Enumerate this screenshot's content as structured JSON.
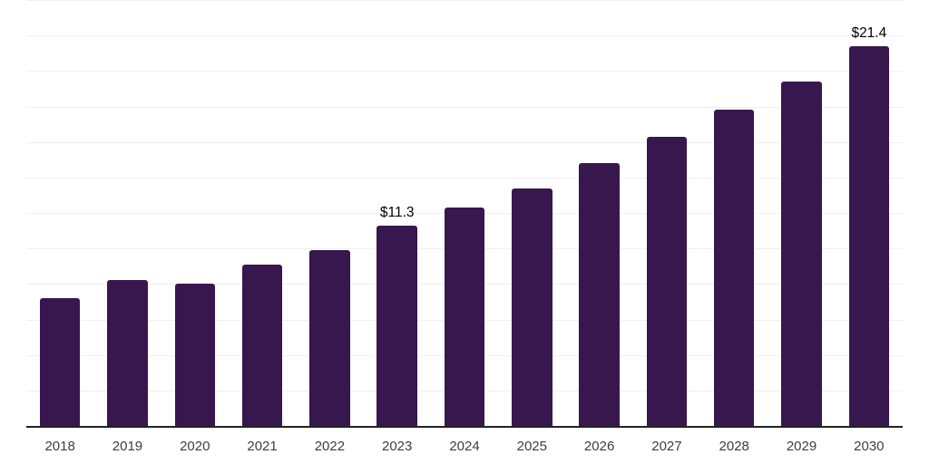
{
  "chart_data": {
    "type": "bar",
    "categories": [
      "2018",
      "2019",
      "2020",
      "2021",
      "2022",
      "2023",
      "2024",
      "2025",
      "2026",
      "2027",
      "2028",
      "2029",
      "2030"
    ],
    "values": [
      7.2,
      8.2,
      8.0,
      9.1,
      9.9,
      11.3,
      12.3,
      13.4,
      14.8,
      16.3,
      17.8,
      19.4,
      21.4
    ],
    "data_labels": [
      "",
      "",
      "",
      "",
      "",
      "$11.3",
      "",
      "",
      "",
      "",
      "",
      "",
      "$21.4"
    ],
    "ylim": [
      0,
      24
    ],
    "grid_step": 2,
    "gridlines": "horizontal",
    "y_tick_labels_visible": false,
    "legend_position": "none",
    "colors": {
      "bar": "#38164E",
      "axis_line": "#222222",
      "gridline": "#F0F0F0",
      "tick_label": "#3D3D3D",
      "data_label": "#000000",
      "background": "#FFFFFF"
    }
  }
}
